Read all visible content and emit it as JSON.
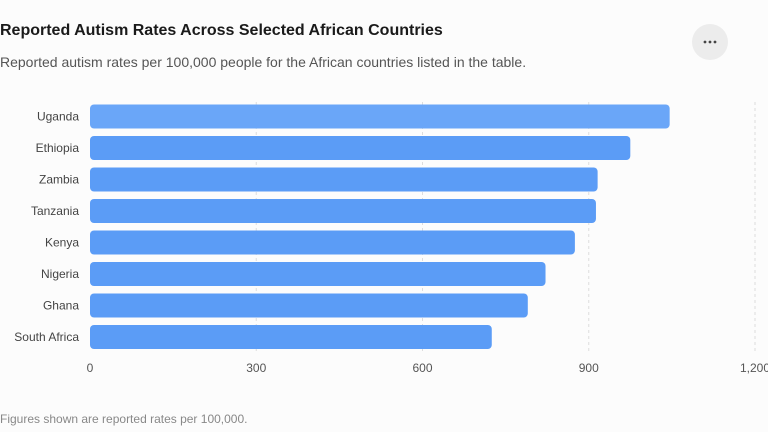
{
  "header": {
    "title": "Reported Autism Rates Across Selected African Countries",
    "subtitle": "Reported autism rates per 100,000 people for the African countries listed in the table.",
    "menu_icon": "more-horizontal-icon"
  },
  "footnote": "Figures shown are reported rates per 100,000.",
  "colors": {
    "bar": "#5b9cf6",
    "bar_top": "#6aa6f8",
    "grid": "#dddddd"
  },
  "chart_data": {
    "type": "bar",
    "orientation": "horizontal",
    "categories": [
      "Uganda",
      "Ethiopia",
      "Zambia",
      "Tanzania",
      "Kenya",
      "Nigeria",
      "Ghana",
      "South Africa"
    ],
    "values": [
      1046,
      975,
      916,
      913,
      875,
      822,
      790,
      725
    ],
    "xlim": [
      0,
      1200
    ],
    "xticks": [
      0,
      300,
      600,
      900,
      1200
    ],
    "xtick_labels": [
      "0",
      "300",
      "600",
      "900",
      "1,200"
    ],
    "grid": "vertical dashed"
  }
}
